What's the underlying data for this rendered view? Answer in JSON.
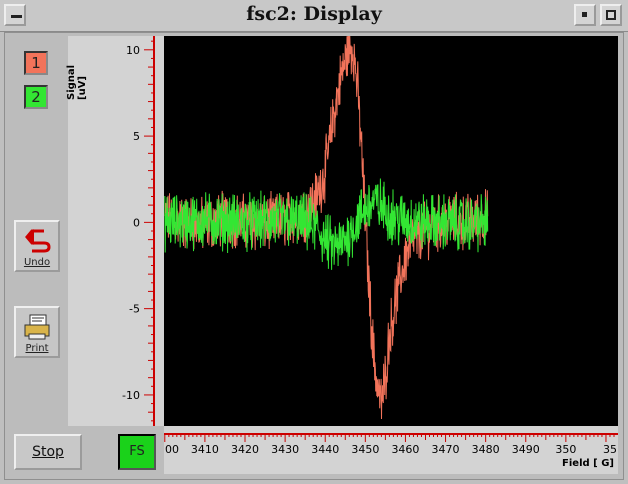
{
  "window": {
    "title": "fsc2: Display"
  },
  "curves": [
    {
      "label": "1",
      "color": "#f2735a"
    },
    {
      "label": "2",
      "color": "#33e633"
    }
  ],
  "buttons": {
    "undo_label": "Undo",
    "print_label": "Print",
    "stop_label": "Stop",
    "fs_label": "FS"
  },
  "chart_data": {
    "type": "line",
    "ylabel": "Signal [uV]",
    "xlabel": "Field [ G]",
    "xlim": [
      3399.8,
      3513
    ],
    "ylim": [
      -11.8,
      10.8
    ],
    "xticks": [
      "00",
      "3410",
      "3420",
      "3430",
      "3440",
      "3450",
      "3460",
      "3470",
      "3480",
      "3490",
      "350",
      "35"
    ],
    "yticks": [
      10,
      5,
      0,
      -5,
      -10
    ],
    "grid": false,
    "series": [
      {
        "color": "#f2735a",
        "x": [
          3400,
          3405,
          3410,
          3415,
          3420,
          3425,
          3430,
          3435,
          3438,
          3440,
          3442,
          3444,
          3446,
          3447,
          3448,
          3449,
          3450,
          3451,
          3452,
          3453,
          3454,
          3455,
          3456,
          3458,
          3460,
          3462,
          3465,
          3470,
          3475,
          3480.5
        ],
        "y": [
          0.2,
          0.0,
          -0.2,
          0.3,
          0.0,
          -0.1,
          0.2,
          0.6,
          1.5,
          3.0,
          6.0,
          8.5,
          10.2,
          10.0,
          8.0,
          4.5,
          0.0,
          -4.0,
          -7.5,
          -9.5,
          -10.5,
          -9.0,
          -6.5,
          -4.0,
          -2.0,
          -1.0,
          -0.4,
          0.1,
          0.0,
          0.3
        ]
      },
      {
        "color": "#33e633",
        "x": [
          3400,
          3410,
          3420,
          3430,
          3435,
          3438,
          3440,
          3442,
          3444,
          3446,
          3448,
          3450,
          3452,
          3454,
          3456,
          3458,
          3460,
          3465,
          3470,
          3475,
          3480.5
        ],
        "y": [
          0.0,
          0.1,
          0.0,
          0.1,
          0.0,
          -0.4,
          -1.0,
          -1.5,
          -1.3,
          -0.7,
          0.1,
          0.8,
          1.2,
          0.9,
          0.5,
          0.2,
          0.1,
          0.0,
          0.0,
          -0.1,
          0.0
        ]
      }
    ]
  }
}
